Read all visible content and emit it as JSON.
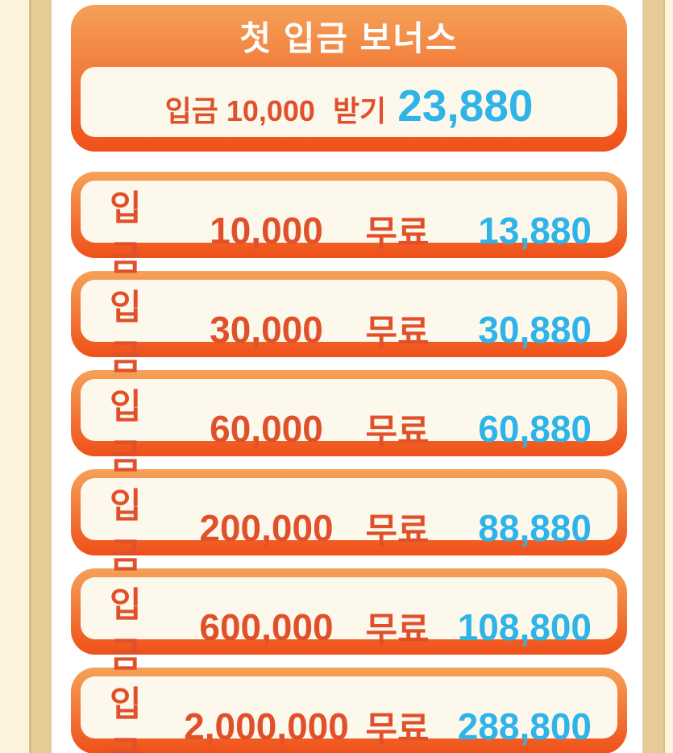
{
  "header_card": {
    "title": "첫 입금 보너스",
    "deposit_label": "입금",
    "deposit_amount": "10,000",
    "claim_label": "받기",
    "bonus_amount": "23,880"
  },
  "tiers": [
    {
      "deposit_label": "입금",
      "deposit": "10,000",
      "free_label": "무료",
      "bonus": "13,880"
    },
    {
      "deposit_label": "입금",
      "deposit": "30,000",
      "free_label": "무료",
      "bonus": "30,880"
    },
    {
      "deposit_label": "입금",
      "deposit": "60,000",
      "free_label": "무료",
      "bonus": "60,880"
    },
    {
      "deposit_label": "입금",
      "deposit": "200,000",
      "free_label": "무료",
      "bonus": "88,880"
    },
    {
      "deposit_label": "입금",
      "deposit": "600,000",
      "free_label": "무료",
      "bonus": "108,800"
    },
    {
      "deposit_label": "입금",
      "deposit": "2,000,000",
      "free_label": "무료",
      "bonus": "288,800"
    }
  ],
  "colors": {
    "page_cream": "#FCF4DD",
    "side_stripe_tan": "#E5CC96",
    "stripe_edge": "#D9BC7E",
    "content_bg": "#FFFFFF",
    "card_gradient_top": "#F5A158",
    "card_gradient_bottom": "#EF5019",
    "panel_cream": "#FDF8EC",
    "deposit_text_orange": "#E0512B",
    "bonus_text_cyan": "#2FB4E9",
    "title_text": "#FFFFFF"
  }
}
